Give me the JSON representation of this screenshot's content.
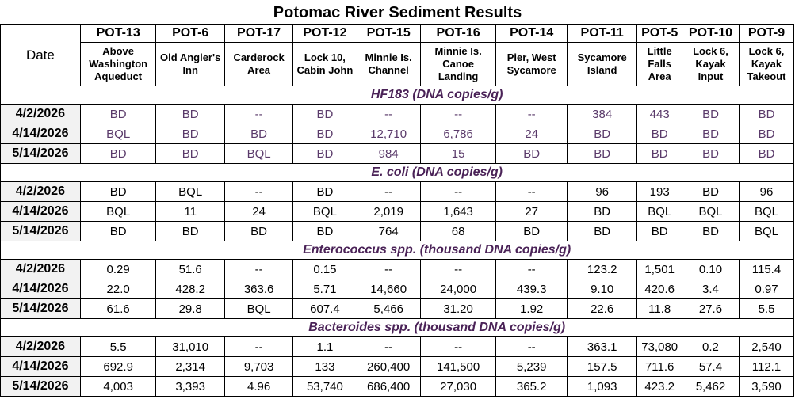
{
  "title": "Potomac River Sediment Results",
  "header": {
    "date_label": "Date",
    "sites": [
      {
        "code": "POT-13",
        "location": "Above Washington Aqueduct"
      },
      {
        "code": "POT-6",
        "location": "Old Angler's Inn"
      },
      {
        "code": "POT-17",
        "location": "Carderock Area"
      },
      {
        "code": "POT-12",
        "location": "Lock 10, Cabin John"
      },
      {
        "code": "POT-15",
        "location": "Minnie Is. Channel"
      },
      {
        "code": "POT-16",
        "location": "Minnie Is. Canoe Landing"
      },
      {
        "code": "POT-14",
        "location": "Pier, West Sycamore"
      },
      {
        "code": "POT-11",
        "location": "Sycamore Island"
      },
      {
        "code": "POT-5",
        "location": "Little Falls Area"
      },
      {
        "code": "POT-10",
        "location": "Lock 6, Kayak Input"
      },
      {
        "code": "POT-9",
        "location": "Lock 6, Kayak Takeout"
      }
    ]
  },
  "sections": [
    {
      "label": "HF183  (DNA copies/g)",
      "rows": [
        {
          "date": "4/2/2026",
          "values": [
            "BD",
            "BD",
            "--",
            "BD",
            "--",
            "--",
            "--",
            "384",
            "443",
            "BD",
            "BD"
          ]
        },
        {
          "date": "4/14/2026",
          "values": [
            "BQL",
            "BD",
            "BD",
            "BD",
            "12,710",
            "6,786",
            "24",
            "BD",
            "BD",
            "BD",
            "BD"
          ]
        },
        {
          "date": "5/14/2026",
          "values": [
            "BD",
            "BD",
            "BQL",
            "BD",
            "984",
            "15",
            "BD",
            "BD",
            "BD",
            "BD",
            "BD"
          ]
        }
      ]
    },
    {
      "label": "E. coli  (DNA copies/g)",
      "rows": [
        {
          "date": "4/2/2026",
          "values": [
            "BD",
            "BQL",
            "--",
            "BD",
            "--",
            "--",
            "--",
            "96",
            "193",
            "BD",
            "96"
          ]
        },
        {
          "date": "4/14/2026",
          "values": [
            "BQL",
            "11",
            "24",
            "BQL",
            "2,019",
            "1,643",
            "27",
            "BD",
            "BQL",
            "BQL",
            "BQL"
          ]
        },
        {
          "date": "5/14/2026",
          "values": [
            "BD",
            "BD",
            "BD",
            "BD",
            "764",
            "68",
            "BD",
            "BD",
            "BD",
            "BD",
            "BQL"
          ]
        }
      ]
    },
    {
      "label": "Enterococcus spp.  (thousand DNA copies/g)",
      "rows": [
        {
          "date": "4/2/2026",
          "values": [
            "0.29",
            "51.6",
            "--",
            "0.15",
            "--",
            "--",
            "--",
            "123.2",
            "1,501",
            "0.10",
            "115.4"
          ]
        },
        {
          "date": "4/14/2026",
          "values": [
            "22.0",
            "428.2",
            "363.6",
            "5.71",
            "14,660",
            "24,000",
            "439.3",
            "9.10",
            "420.6",
            "3.4",
            "0.97"
          ]
        },
        {
          "date": "5/14/2026",
          "values": [
            "61.6",
            "29.8",
            "BQL",
            "607.4",
            "5,466",
            "31.20",
            "1.92",
            "22.6",
            "11.8",
            "27.6",
            "5.5"
          ]
        }
      ]
    },
    {
      "label": "Bacteroides spp. (thousand DNA copies/g)",
      "rows": [
        {
          "date": "4/2/2026",
          "values": [
            "5.5",
            "31,010",
            "--",
            "1.1",
            "--",
            "--",
            "--",
            "363.1",
            "73,080",
            "0.2",
            "2,540"
          ]
        },
        {
          "date": "4/14/2026",
          "values": [
            "692.9",
            "2,314",
            "9,703",
            "133",
            "260,400",
            "141,500",
            "5,239",
            "157.5",
            "711.6",
            "57.4",
            "112.1"
          ]
        },
        {
          "date": "5/14/2026",
          "values": [
            "4,003",
            "3,393",
            "4.96",
            "53,740",
            "686,400",
            "27,030",
            "365.2",
            "1,093",
            "423.2",
            "5,462",
            "3,590"
          ]
        }
      ]
    }
  ],
  "colors": {
    "section_label": "#4a2257",
    "hf183_values": "#5a3a6a",
    "date_cell_bg": "#f2f2f2"
  }
}
